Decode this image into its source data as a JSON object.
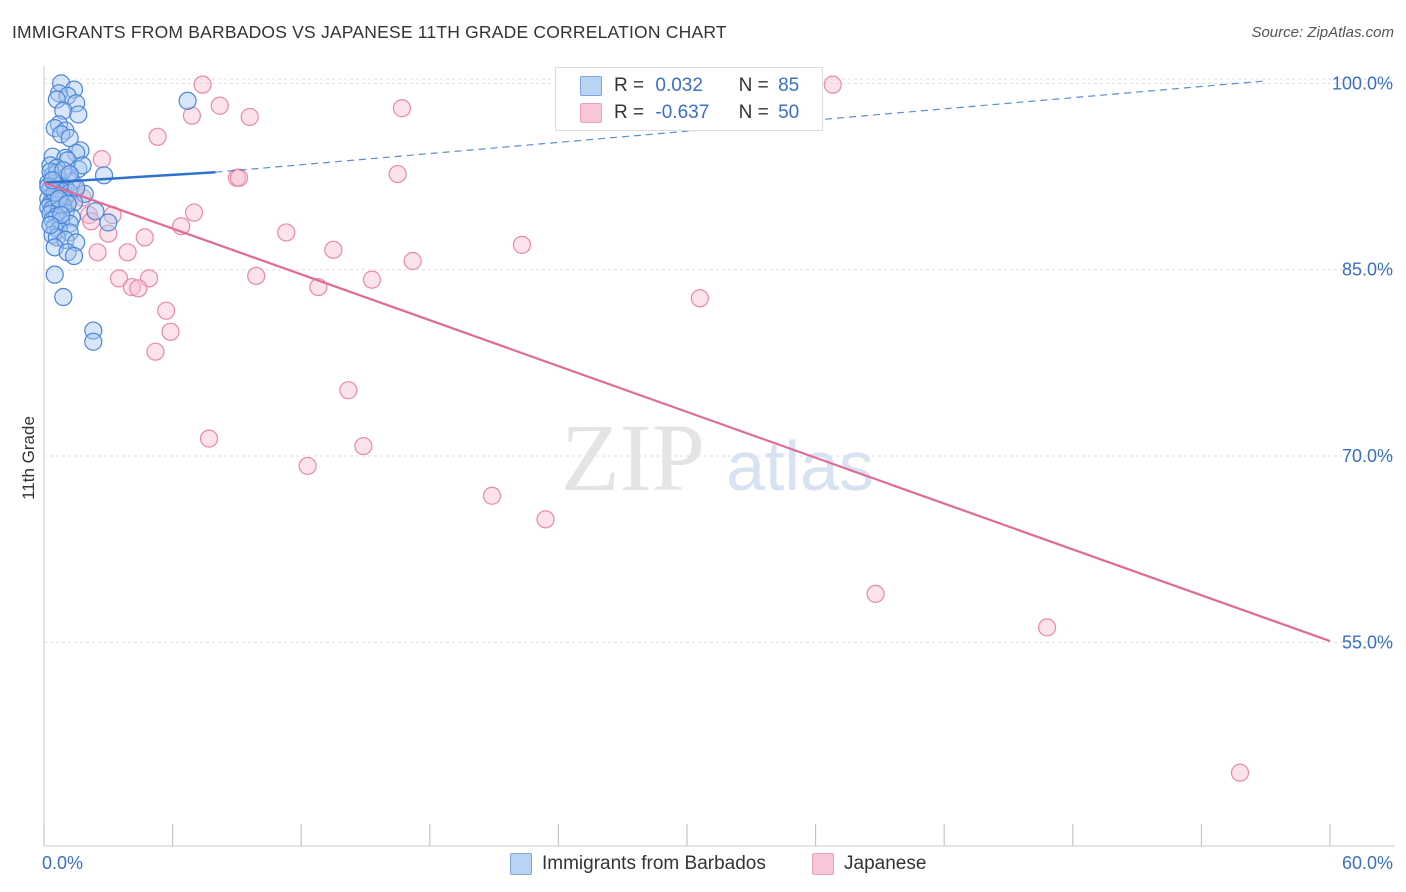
{
  "title": "IMMIGRANTS FROM BARBADOS VS JAPANESE 11TH GRADE CORRELATION CHART",
  "source": "Source: ZipAtlas.com",
  "watermark": {
    "zip": "ZIP",
    "atlas": "atlas"
  },
  "legend": {
    "rows": [
      {
        "r_label": "R =",
        "r_value": "0.032",
        "n_label": "N =",
        "n_value": "85"
      },
      {
        "r_label": "R =",
        "r_value": "-0.637",
        "n_label": "N =",
        "n_value": "50"
      }
    ]
  },
  "bottom_legend": {
    "items": [
      "Immigrants from Barbados",
      "Japanese"
    ]
  },
  "colors": {
    "blue_fill": "#a8c8f0",
    "blue_stroke": "#4a86d8",
    "blue_line": "#2f72cc",
    "pink_fill": "#f8bfd0",
    "pink_stroke": "#e88aa8",
    "pink_line": "#e06a96",
    "axis_label": "#3a6fc4",
    "grid": "#dddddd"
  },
  "chart_data": {
    "type": "scatter",
    "title": "IMMIGRANTS FROM BARBADOS VS JAPANESE 11TH GRADE CORRELATION CHART",
    "xlabel": "",
    "ylabel": "11th Grade",
    "xlim": [
      0,
      60
    ],
    "ylim": [
      38.6,
      101.4
    ],
    "x_tick_labels": {
      "min": "0.0%",
      "max": "60.0%"
    },
    "y_ticks": [
      100,
      85,
      70,
      55
    ],
    "y_tick_labels": [
      "100.0%",
      "85.0%",
      "70.0%",
      "55.0%"
    ],
    "grid": true,
    "legend_position": "top-center",
    "series": [
      {
        "name": "Immigrants from Barbados",
        "R": 0.032,
        "N": 85,
        "trend": {
          "x": [
            0,
            8.0
          ],
          "y": [
            92.0,
            92.85
          ]
        },
        "trend_extension": {
          "x": [
            8.0,
            57.0
          ],
          "y": [
            92.85,
            100.2
          ]
        },
        "points": [
          [
            0.8,
            100.0
          ],
          [
            1.4,
            99.5
          ],
          [
            0.7,
            99.2
          ],
          [
            1.1,
            99.0
          ],
          [
            0.6,
            98.7
          ],
          [
            1.5,
            98.4
          ],
          [
            6.7,
            98.6
          ],
          [
            0.9,
            97.8
          ],
          [
            1.6,
            97.5
          ],
          [
            0.7,
            96.7
          ],
          [
            0.5,
            96.4
          ],
          [
            1.0,
            96.2
          ],
          [
            0.8,
            95.9
          ],
          [
            1.2,
            95.6
          ],
          [
            1.7,
            94.6
          ],
          [
            1.5,
            94.4
          ],
          [
            0.4,
            94.1
          ],
          [
            1.0,
            94.0
          ],
          [
            1.1,
            93.8
          ],
          [
            0.3,
            93.4
          ],
          [
            0.6,
            93.2
          ],
          [
            1.6,
            93.1
          ],
          [
            2.8,
            92.6
          ],
          [
            0.4,
            92.6
          ],
          [
            1.1,
            92.5
          ],
          [
            0.6,
            92.3
          ],
          [
            1.3,
            92.1
          ],
          [
            0.2,
            92.0
          ],
          [
            0.5,
            91.9
          ],
          [
            0.8,
            91.8
          ],
          [
            1.0,
            91.6
          ],
          [
            0.3,
            91.5
          ],
          [
            0.6,
            91.4
          ],
          [
            0.9,
            91.3
          ],
          [
            1.2,
            91.2
          ],
          [
            1.9,
            91.1
          ],
          [
            0.4,
            91.0
          ],
          [
            0.7,
            90.9
          ],
          [
            1.0,
            90.8
          ],
          [
            0.2,
            90.7
          ],
          [
            0.5,
            90.6
          ],
          [
            0.8,
            90.5
          ],
          [
            1.4,
            90.4
          ],
          [
            0.3,
            90.3
          ],
          [
            0.6,
            90.2
          ],
          [
            0.9,
            90.1
          ],
          [
            0.2,
            90.0
          ],
          [
            0.4,
            89.9
          ],
          [
            0.7,
            89.8
          ],
          [
            2.4,
            89.7
          ],
          [
            1.0,
            89.6
          ],
          [
            0.3,
            89.5
          ],
          [
            0.6,
            89.3
          ],
          [
            1.3,
            89.2
          ],
          [
            0.4,
            89.0
          ],
          [
            0.8,
            88.9
          ],
          [
            1.2,
            88.7
          ],
          [
            3.0,
            88.8
          ],
          [
            0.5,
            88.4
          ],
          [
            0.7,
            88.2
          ],
          [
            1.2,
            88.0
          ],
          [
            0.4,
            87.8
          ],
          [
            0.6,
            87.6
          ],
          [
            1.0,
            87.4
          ],
          [
            1.5,
            87.2
          ],
          [
            0.5,
            86.8
          ],
          [
            1.1,
            86.4
          ],
          [
            1.4,
            86.1
          ],
          [
            0.5,
            84.6
          ],
          [
            0.9,
            82.8
          ],
          [
            2.3,
            80.1
          ],
          [
            2.3,
            79.2
          ],
          [
            0.6,
            92.8
          ],
          [
            1.8,
            93.4
          ],
          [
            0.3,
            92.9
          ],
          [
            0.9,
            93.0
          ],
          [
            0.5,
            91.2
          ],
          [
            1.5,
            91.6
          ],
          [
            0.2,
            91.7
          ],
          [
            0.7,
            90.7
          ],
          [
            1.1,
            90.3
          ],
          [
            0.4,
            92.2
          ],
          [
            0.8,
            89.4
          ],
          [
            1.2,
            92.7
          ],
          [
            0.3,
            88.6
          ]
        ]
      },
      {
        "name": "Japanese",
        "R": -0.637,
        "N": 50,
        "trend": {
          "x": [
            0,
            60
          ],
          "y": [
            92.0,
            55.1
          ]
        },
        "points": [
          [
            7.4,
            99.9
          ],
          [
            36.8,
            99.9
          ],
          [
            8.2,
            98.2
          ],
          [
            16.7,
            98.0
          ],
          [
            6.9,
            97.4
          ],
          [
            9.6,
            97.3
          ],
          [
            5.3,
            95.7
          ],
          [
            2.7,
            93.9
          ],
          [
            16.5,
            92.7
          ],
          [
            9.0,
            92.4
          ],
          [
            9.1,
            92.4
          ],
          [
            0.8,
            92.2
          ],
          [
            0.6,
            91.6
          ],
          [
            1.5,
            91.4
          ],
          [
            1.8,
            90.8
          ],
          [
            1.2,
            90.6
          ],
          [
            7.0,
            89.6
          ],
          [
            3.2,
            89.4
          ],
          [
            2.1,
            89.4
          ],
          [
            2.2,
            88.9
          ],
          [
            6.4,
            88.5
          ],
          [
            11.3,
            88.0
          ],
          [
            4.7,
            87.6
          ],
          [
            3.0,
            87.9
          ],
          [
            22.3,
            87.0
          ],
          [
            13.5,
            86.6
          ],
          [
            2.5,
            86.4
          ],
          [
            3.9,
            86.4
          ],
          [
            17.2,
            85.7
          ],
          [
            9.9,
            84.5
          ],
          [
            3.5,
            84.3
          ],
          [
            4.9,
            84.3
          ],
          [
            15.3,
            84.2
          ],
          [
            12.8,
            83.6
          ],
          [
            4.1,
            83.6
          ],
          [
            4.4,
            83.5
          ],
          [
            30.6,
            82.7
          ],
          [
            5.7,
            81.7
          ],
          [
            5.9,
            80.0
          ],
          [
            5.2,
            78.4
          ],
          [
            14.2,
            75.3
          ],
          [
            7.7,
            71.4
          ],
          [
            14.9,
            70.8
          ],
          [
            12.3,
            69.2
          ],
          [
            20.9,
            66.8
          ],
          [
            23.4,
            64.9
          ],
          [
            38.8,
            58.9
          ],
          [
            46.8,
            56.2
          ],
          [
            55.8,
            44.5
          ],
          [
            1.0,
            91.0
          ]
        ]
      }
    ]
  }
}
